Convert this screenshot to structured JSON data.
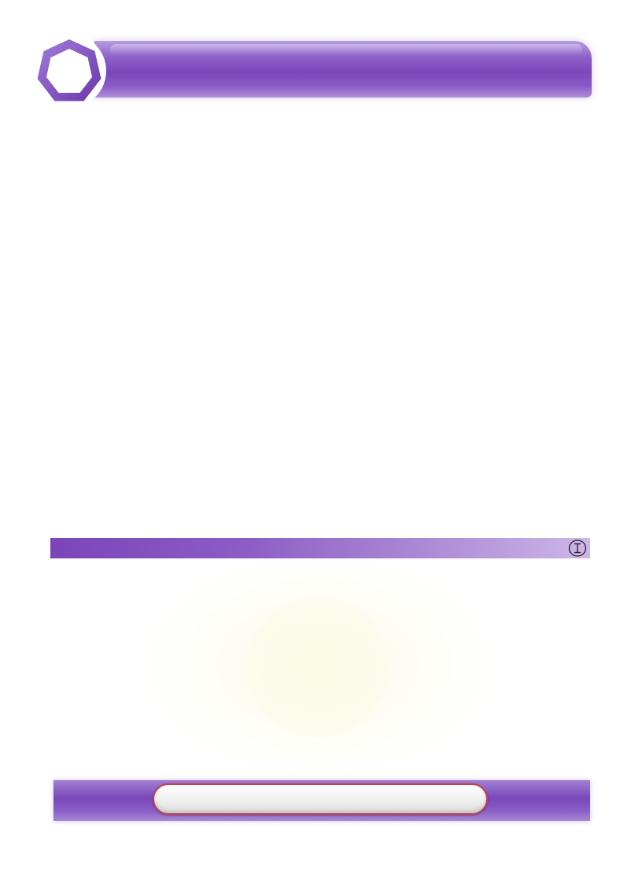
{
  "header": {
    "title": "",
    "badge_icon": "heptagon-icon",
    "accent_color": "#7a47ba"
  },
  "section": {
    "title": "",
    "icon": "circled-i-icon"
  },
  "footer": {
    "pill_label": "",
    "pill_border_color": "#c2414d"
  }
}
